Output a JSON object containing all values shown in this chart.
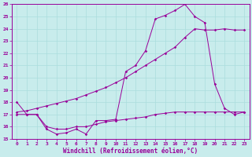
{
  "xlabel": "Windchill (Refroidissement éolien,°C)",
  "xlim": [
    -0.5,
    23.5
  ],
  "ylim": [
    15,
    26
  ],
  "yticks": [
    15,
    16,
    17,
    18,
    19,
    20,
    21,
    22,
    23,
    24,
    25,
    26
  ],
  "xticks": [
    0,
    1,
    2,
    3,
    4,
    5,
    6,
    7,
    8,
    9,
    10,
    11,
    12,
    13,
    14,
    15,
    16,
    17,
    18,
    19,
    20,
    21,
    22,
    23
  ],
  "bg_color": "#c8ecec",
  "line_color": "#990099",
  "grid_color": "#aadddd",
  "line1_x": [
    0,
    1,
    2,
    3,
    4,
    5,
    6,
    7,
    8,
    9,
    10,
    11,
    12,
    13,
    14,
    15,
    16,
    17,
    18,
    19,
    20,
    21,
    22,
    23
  ],
  "line1_y": [
    18.0,
    17.0,
    17.0,
    15.8,
    15.4,
    15.5,
    15.8,
    15.4,
    16.5,
    16.5,
    16.6,
    20.5,
    21.0,
    22.2,
    24.8,
    25.1,
    25.5,
    26.0,
    25.0,
    24.5,
    19.5,
    17.5,
    17.0,
    17.2
  ],
  "line2_x": [
    0,
    1,
    2,
    3,
    4,
    5,
    6,
    7,
    8,
    9,
    10,
    11,
    12,
    13,
    14,
    15,
    16,
    17,
    18,
    19,
    20,
    21,
    22,
    23
  ],
  "line2_y": [
    17.2,
    17.3,
    17.5,
    17.7,
    17.9,
    18.1,
    18.3,
    18.6,
    18.9,
    19.2,
    19.6,
    20.0,
    20.5,
    21.0,
    21.5,
    22.0,
    22.5,
    23.3,
    24.0,
    23.9,
    23.9,
    24.0,
    23.9,
    23.9
  ],
  "line3_x": [
    0,
    1,
    2,
    3,
    4,
    5,
    6,
    7,
    8,
    9,
    10,
    11,
    12,
    13,
    14,
    15,
    16,
    17,
    18,
    19,
    20,
    21,
    22,
    23
  ],
  "line3_y": [
    17.0,
    17.0,
    17.0,
    16.0,
    15.8,
    15.8,
    16.0,
    16.0,
    16.2,
    16.4,
    16.5,
    16.6,
    16.7,
    16.8,
    17.0,
    17.1,
    17.2,
    17.2,
    17.2,
    17.2,
    17.2,
    17.2,
    17.2,
    17.2
  ]
}
